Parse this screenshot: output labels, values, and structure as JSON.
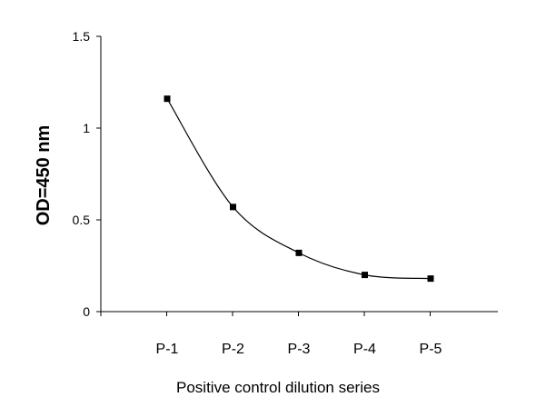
{
  "chart_data": {
    "type": "line",
    "title": "",
    "xlabel": "Positive control dilution series",
    "ylabel": "OD=450 nm",
    "categories": [
      "P-1",
      "P-2",
      "P-3",
      "P-4",
      "P-5"
    ],
    "series": [
      {
        "values": [
          1.16,
          0.57,
          0.32,
          0.2,
          0.18
        ]
      }
    ],
    "ylim": [
      0,
      1.5
    ],
    "yticks": [
      0,
      0.5,
      1,
      1.5
    ],
    "ytick_labels": [
      "0",
      "0.5",
      "1",
      "1.5"
    ],
    "line_style": "smoothed",
    "marker": "square",
    "grid": false,
    "legend": "none",
    "colors": {
      "line": "#000000",
      "marker": "#000000",
      "axis": "#000000"
    }
  }
}
